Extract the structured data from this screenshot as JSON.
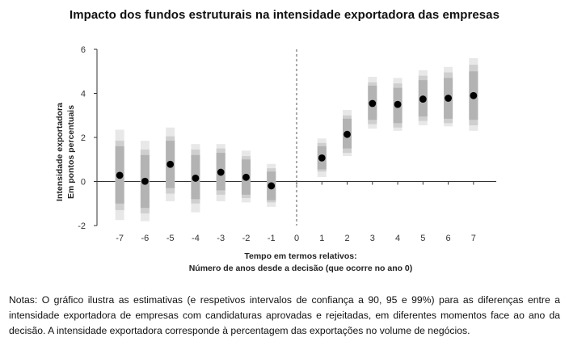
{
  "chart_data": {
    "type": "scatter",
    "title": "Impacto dos fundos estruturais na intensidade exportadora das empresas",
    "ylabel_lines": [
      "Intensidade exportadora",
      "Em pontos percentuais"
    ],
    "xlabel_lines": [
      "Tempo em termos relativos:",
      "Número de anos desde a decisão (que ocorre no ano 0)"
    ],
    "ylim": [
      -2,
      6
    ],
    "xlim": [
      -7.9,
      7.9
    ],
    "yticks": [
      -2,
      0,
      2,
      4,
      6
    ],
    "xticks": [
      -7,
      -6,
      -5,
      -4,
      -3,
      -2,
      -1,
      0,
      1,
      2,
      3,
      4,
      5,
      6,
      7
    ],
    "x": [
      -7,
      -6,
      -5,
      -4,
      -3,
      -2,
      -1,
      1,
      2,
      3,
      4,
      5,
      6,
      7
    ],
    "estimate": [
      0.28,
      0.01,
      0.78,
      0.15,
      0.42,
      0.19,
      -0.2,
      1.07,
      2.14,
      3.54,
      3.5,
      3.74,
      3.78,
      3.9
    ],
    "ci90": [
      [
        -1.0,
        1.6
      ],
      [
        -1.2,
        1.2
      ],
      [
        -0.3,
        1.85
      ],
      [
        -0.8,
        1.2
      ],
      [
        -0.4,
        1.3
      ],
      [
        -0.6,
        1.0
      ],
      [
        -0.85,
        0.45
      ],
      [
        0.55,
        1.6
      ],
      [
        1.5,
        2.85
      ],
      [
        2.8,
        4.35
      ],
      [
        2.65,
        4.25
      ],
      [
        2.95,
        4.6
      ],
      [
        2.85,
        4.7
      ],
      [
        2.8,
        5.0
      ]
    ],
    "ci95": [
      [
        -1.3,
        1.85
      ],
      [
        -1.45,
        1.45
      ],
      [
        -0.55,
        2.05
      ],
      [
        -1.0,
        1.45
      ],
      [
        -0.6,
        1.5
      ],
      [
        -0.75,
        1.15
      ],
      [
        -0.95,
        0.6
      ],
      [
        0.45,
        1.75
      ],
      [
        1.3,
        3.0
      ],
      [
        2.6,
        4.5
      ],
      [
        2.45,
        4.45
      ],
      [
        2.75,
        4.8
      ],
      [
        2.65,
        4.95
      ],
      [
        2.55,
        5.3
      ]
    ],
    "ci99": [
      [
        -1.75,
        2.35
      ],
      [
        -1.8,
        1.85
      ],
      [
        -0.9,
        2.45
      ],
      [
        -1.4,
        1.7
      ],
      [
        -0.9,
        1.7
      ],
      [
        -0.95,
        1.4
      ],
      [
        -1.15,
        0.8
      ],
      [
        0.2,
        1.95
      ],
      [
        1.15,
        3.25
      ],
      [
        2.4,
        4.75
      ],
      [
        2.3,
        4.7
      ],
      [
        2.55,
        5.05
      ],
      [
        2.5,
        5.2
      ],
      [
        2.3,
        5.6
      ]
    ],
    "grid": false,
    "reference_line_x": 0,
    "colors": {
      "ci90": "#b3b3b3",
      "ci95": "#cfcfcf",
      "ci99": "#e8e8e8",
      "point": "#000000",
      "axis": "#333333",
      "reference_line": "#555555"
    }
  },
  "notes": "Notas: O gráfico ilustra as estimativas (e respetivos intervalos de confiança a 90, 95 e 99%) para as diferenças entre a intensidade exportadora de empresas com candidaturas aprovadas e rejeitadas, em diferentes momentos face ao ano da decisão. A intensidade exportadora corresponde à percentagem das exportações no volume de negócios."
}
